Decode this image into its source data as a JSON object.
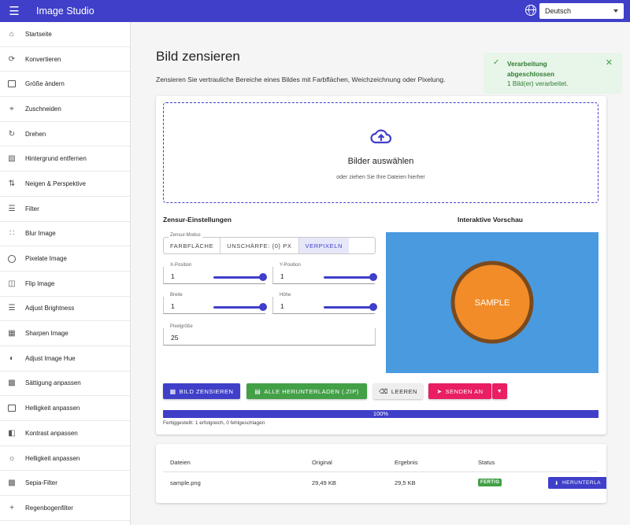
{
  "appbar": {
    "title": "Image Studio",
    "language": "Deutsch"
  },
  "sidebar": {
    "items": [
      {
        "label": "Startseite",
        "icon": "home-icon"
      },
      {
        "label": "Konvertieren",
        "icon": "refresh-icon"
      },
      {
        "label": "Größe ändern",
        "icon": "image-icon"
      },
      {
        "label": "Zuschneiden",
        "icon": "crop-icon"
      },
      {
        "label": "Drehen",
        "icon": "rotate-icon"
      },
      {
        "label": "Hintergrund entfernen",
        "icon": "hide-image-icon"
      },
      {
        "label": "Neigen & Perspektive",
        "icon": "transform-icon"
      },
      {
        "label": "Filter",
        "icon": "tune-icon"
      },
      {
        "label": "Blur Image",
        "icon": "blur-icon"
      },
      {
        "label": "Pixelate Image",
        "icon": "add-circle-icon"
      },
      {
        "label": "Flip Image",
        "icon": "flip-icon"
      },
      {
        "label": "Adjust Brightness",
        "icon": "tune-icon"
      },
      {
        "label": "Sharpen Image",
        "icon": "sharpen-icon"
      },
      {
        "label": "Adjust Image Hue",
        "icon": "palette-icon"
      },
      {
        "label": "Sättigung anpassen",
        "icon": "saturation-icon"
      },
      {
        "label": "Helligkeit anpassen",
        "icon": "image-icon"
      },
      {
        "label": "Kontrast anpassen",
        "icon": "contrast-icon"
      },
      {
        "label": "Helligkeit anpassen",
        "icon": "brightness-icon"
      },
      {
        "label": "Sepia-Filter",
        "icon": "photo-filter-icon"
      },
      {
        "label": "Regenbogenfilter",
        "icon": "plus-icon"
      }
    ]
  },
  "page": {
    "title": "Bild zensieren",
    "description": "Zensieren Sie vertrauliche Bereiche eines Bildes mit Farbflächen, Weichzeichnung oder Pixelung."
  },
  "toast": {
    "title": "Verarbeitung abgeschlossen",
    "message": "1 Bild(er) verarbeitet."
  },
  "dropzone": {
    "title": "Bilder auswählen",
    "subtitle": "oder ziehen Sie Ihre Dateien hierher"
  },
  "settings": {
    "title": "Zensur-Einstellungen",
    "mode_label": "Zensur-Modus",
    "modes": [
      "FARBFLÄCHE",
      "UNSCHÄRFE: {0} PX",
      "VERPIXELN"
    ],
    "selected_mode": 2,
    "x_label": "X-Position",
    "x_value": "1",
    "y_label": "Y-Position",
    "y_value": "1",
    "w_label": "Breite",
    "w_value": "1",
    "h_label": "Höhe",
    "h_value": "1",
    "pixel_label": "Pixelgröße",
    "pixel_value": "25"
  },
  "preview": {
    "title": "Interaktive Vorschau",
    "sample_text": "SAMPLE",
    "bg_color": "#4a9ae0",
    "circle_color": "#f28c28",
    "ring_color": "#7a4a1e"
  },
  "actions": {
    "censor": "BILD ZENSIEREN",
    "download_all": "ALLE HERUNTERLADEN (.ZIP)",
    "clear": "LEEREN",
    "send": "SENDEN AN"
  },
  "progress": {
    "value": 100,
    "label": "100%",
    "status": "Fertiggestellt: 1 erfolgreich, 0 fehlgeschlagen"
  },
  "table": {
    "headers": [
      "Dateien",
      "Original",
      "Ergebnis",
      "Status"
    ],
    "rows": [
      {
        "file": "sample.png",
        "original": "29,49 KB",
        "result": "29,5 KB",
        "status": "FERTIG",
        "action": "HERUNTERLA"
      }
    ]
  }
}
